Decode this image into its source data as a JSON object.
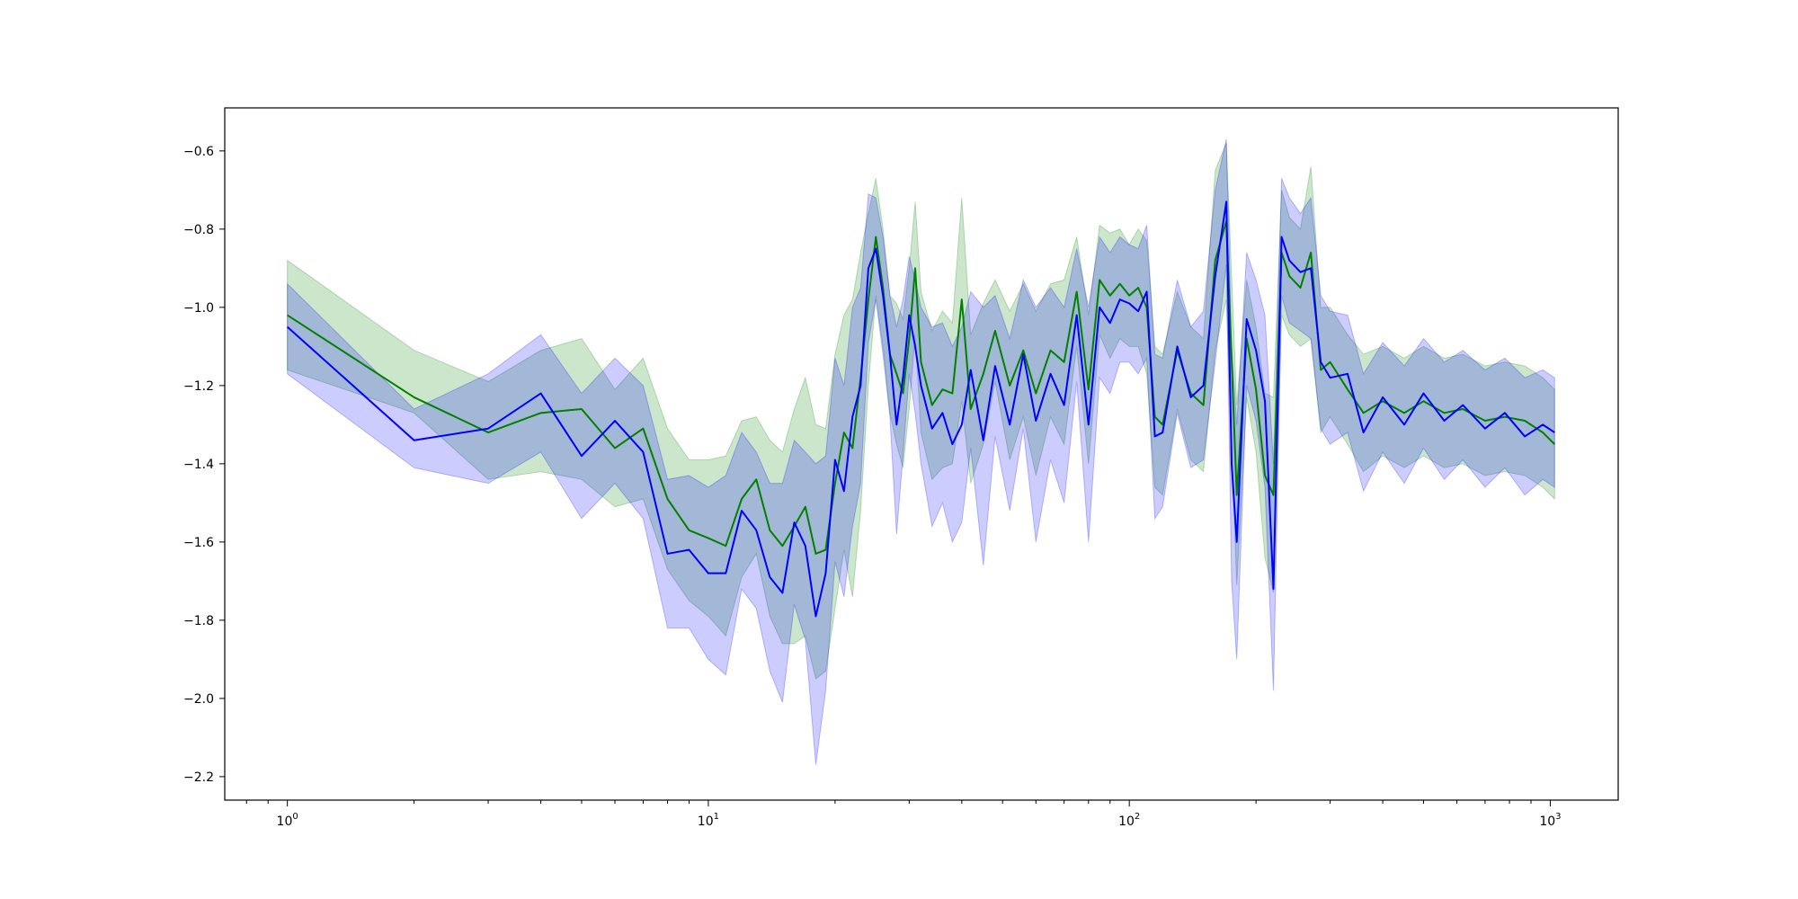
{
  "chart_data": {
    "type": "line",
    "title": "",
    "xlabel": "",
    "ylabel": "",
    "x_scale": "log",
    "xlim": [
      0.71,
      1450
    ],
    "ylim": [
      -2.26,
      -0.49
    ],
    "grid": false,
    "legend": null,
    "x_ticks": [
      {
        "value": 1,
        "base": "10",
        "exp": "0"
      },
      {
        "value": 10,
        "base": "10",
        "exp": "1"
      },
      {
        "value": 100,
        "base": "10",
        "exp": "2"
      },
      {
        "value": 1000,
        "base": "10",
        "exp": "3"
      }
    ],
    "y_ticks": [
      {
        "value": -0.6,
        "label": "−0.6"
      },
      {
        "value": -0.8,
        "label": "−0.8"
      },
      {
        "value": -1.0,
        "label": "−1.0"
      },
      {
        "value": -1.2,
        "label": "−1.2"
      },
      {
        "value": -1.4,
        "label": "−1.4"
      },
      {
        "value": -1.6,
        "label": "−1.6"
      },
      {
        "value": -1.8,
        "label": "−1.8"
      },
      {
        "value": -2.0,
        "label": "−2.0"
      },
      {
        "value": -2.2,
        "label": "−2.2"
      }
    ],
    "series": [
      {
        "color": "#008000",
        "band_color": "#008000",
        "band_opacity": 0.2,
        "points": [
          [
            1,
            -1.02,
            -0.88,
            -1.16
          ],
          [
            2,
            -1.23,
            -1.11,
            -1.27
          ],
          [
            3,
            -1.32,
            -1.19,
            -1.44
          ],
          [
            4,
            -1.27,
            -1.11,
            -1.42
          ],
          [
            5,
            -1.26,
            -1.08,
            -1.44
          ],
          [
            6,
            -1.36,
            -1.21,
            -1.51
          ],
          [
            7,
            -1.31,
            -1.13,
            -1.49
          ],
          [
            8,
            -1.49,
            -1.31,
            -1.67
          ],
          [
            9,
            -1.57,
            -1.39,
            -1.75
          ],
          [
            10,
            -1.59,
            -1.39,
            -1.79
          ],
          [
            11,
            -1.61,
            -1.38,
            -1.84
          ],
          [
            12,
            -1.49,
            -1.29,
            -1.69
          ],
          [
            13,
            -1.44,
            -1.28,
            -1.63
          ],
          [
            14,
            -1.57,
            -1.34,
            -1.79
          ],
          [
            15,
            -1.61,
            -1.37,
            -1.86
          ],
          [
            16,
            -1.56,
            -1.26,
            -1.86
          ],
          [
            17,
            -1.51,
            -1.18,
            -1.84
          ],
          [
            18,
            -1.63,
            -1.3,
            -1.95
          ],
          [
            19,
            -1.62,
            -1.31,
            -1.93
          ],
          [
            20,
            -1.45,
            -1.12,
            -1.77
          ],
          [
            21,
            -1.32,
            -1.02,
            -1.62
          ],
          [
            22,
            -1.36,
            -0.98,
            -1.74
          ],
          [
            23,
            -1.18,
            -0.86,
            -1.52
          ],
          [
            24,
            -0.98,
            -0.76,
            -1.2
          ],
          [
            25,
            -0.82,
            -0.67,
            -0.97
          ],
          [
            26,
            -0.95,
            -0.8,
            -1.1
          ],
          [
            27,
            -1.12,
            -0.97,
            -1.27
          ],
          [
            28,
            -1.17,
            -0.99,
            -1.35
          ],
          [
            29,
            -1.22,
            -1.03,
            -1.41
          ],
          [
            30,
            -1.08,
            -0.9,
            -1.26
          ],
          [
            31,
            -0.9,
            -0.73,
            -1.07
          ],
          [
            32,
            -1.14,
            -0.96,
            -1.32
          ],
          [
            34,
            -1.25,
            -1.06,
            -1.44
          ],
          [
            36,
            -1.21,
            -1.01,
            -1.41
          ],
          [
            38,
            -1.22,
            -1.04,
            -1.4
          ],
          [
            40,
            -0.98,
            -0.72,
            -1.24
          ],
          [
            42,
            -1.26,
            -1.07,
            -1.45
          ],
          [
            45,
            -1.17,
            -0.99,
            -1.35
          ],
          [
            48,
            -1.06,
            -0.93,
            -1.19
          ],
          [
            52,
            -1.2,
            -1.01,
            -1.39
          ],
          [
            56,
            -1.11,
            -0.94,
            -1.28
          ],
          [
            60,
            -1.22,
            -1.01,
            -1.43
          ],
          [
            65,
            -1.11,
            -0.94,
            -1.28
          ],
          [
            70,
            -1.14,
            -0.93,
            -1.35
          ],
          [
            75,
            -0.96,
            -0.82,
            -1.1
          ],
          [
            80,
            -1.21,
            -1.02,
            -1.4
          ],
          [
            85,
            -0.93,
            -0.79,
            -1.07
          ],
          [
            90,
            -0.97,
            -0.81,
            -1.13
          ],
          [
            95,
            -0.94,
            -0.8,
            -1.08
          ],
          [
            100,
            -0.97,
            -0.84,
            -1.1
          ],
          [
            105,
            -0.95,
            -0.8,
            -1.1
          ],
          [
            110,
            -1.0,
            -0.83,
            -1.17
          ],
          [
            115,
            -1.28,
            -1.1,
            -1.46
          ],
          [
            120,
            -1.3,
            -1.12,
            -1.48
          ],
          [
            130,
            -1.11,
            -0.96,
            -1.26
          ],
          [
            140,
            -1.22,
            -1.05,
            -1.39
          ],
          [
            150,
            -1.25,
            -1.08,
            -1.42
          ],
          [
            160,
            -0.88,
            -0.65,
            -1.11
          ],
          [
            170,
            -0.78,
            -0.58,
            -0.98
          ],
          [
            180,
            -1.48,
            -1.25,
            -1.71
          ],
          [
            190,
            -1.08,
            -0.93,
            -1.23
          ],
          [
            200,
            -1.21,
            -1.05,
            -1.37
          ],
          [
            210,
            -1.43,
            -1.22,
            -1.64
          ],
          [
            220,
            -1.48,
            -1.23,
            -1.73
          ],
          [
            230,
            -0.86,
            -0.7,
            -1.02
          ],
          [
            240,
            -0.92,
            -0.77,
            -1.07
          ],
          [
            255,
            -0.95,
            -0.8,
            -1.1
          ],
          [
            270,
            -0.86,
            -0.64,
            -1.08
          ],
          [
            285,
            -1.16,
            -1.0,
            -1.32
          ],
          [
            300,
            -1.14,
            -1.0,
            -1.28
          ],
          [
            330,
            -1.21,
            -1.07,
            -1.35
          ],
          [
            360,
            -1.27,
            -1.12,
            -1.42
          ],
          [
            400,
            -1.24,
            -1.1,
            -1.38
          ],
          [
            450,
            -1.27,
            -1.13,
            -1.41
          ],
          [
            500,
            -1.24,
            -1.1,
            -1.38
          ],
          [
            560,
            -1.27,
            -1.13,
            -1.41
          ],
          [
            620,
            -1.26,
            -1.12,
            -1.4
          ],
          [
            700,
            -1.29,
            -1.15,
            -1.43
          ],
          [
            780,
            -1.28,
            -1.14,
            -1.42
          ],
          [
            870,
            -1.29,
            -1.15,
            -1.43
          ],
          [
            960,
            -1.32,
            -1.18,
            -1.46
          ],
          [
            1024,
            -1.35,
            -1.21,
            -1.49
          ]
        ]
      },
      {
        "color": "#0000ff",
        "band_color": "#0000ff",
        "band_opacity": 0.2,
        "points": [
          [
            1,
            -1.05,
            -0.94,
            -1.17
          ],
          [
            2,
            -1.34,
            -1.26,
            -1.41
          ],
          [
            3,
            -1.31,
            -1.17,
            -1.45
          ],
          [
            4,
            -1.22,
            -1.07,
            -1.37
          ],
          [
            5,
            -1.38,
            -1.22,
            -1.54
          ],
          [
            6,
            -1.29,
            -1.13,
            -1.45
          ],
          [
            7,
            -1.37,
            -1.2,
            -1.54
          ],
          [
            8,
            -1.63,
            -1.44,
            -1.82
          ],
          [
            9,
            -1.62,
            -1.43,
            -1.82
          ],
          [
            10,
            -1.68,
            -1.46,
            -1.9
          ],
          [
            11,
            -1.68,
            -1.43,
            -1.94
          ],
          [
            12,
            -1.52,
            -1.32,
            -1.72
          ],
          [
            13,
            -1.57,
            -1.37,
            -1.77
          ],
          [
            14,
            -1.69,
            -1.45,
            -1.93
          ],
          [
            15,
            -1.73,
            -1.45,
            -2.01
          ],
          [
            16,
            -1.55,
            -1.34,
            -1.76
          ],
          [
            17,
            -1.61,
            -1.37,
            -1.85
          ],
          [
            18,
            -1.79,
            -1.4,
            -2.17
          ],
          [
            19,
            -1.68,
            -1.38,
            -1.98
          ],
          [
            20,
            -1.39,
            -1.13,
            -1.65
          ],
          [
            21,
            -1.47,
            -1.2,
            -1.74
          ],
          [
            22,
            -1.28,
            -1.0,
            -1.56
          ],
          [
            23,
            -1.2,
            -0.95,
            -1.45
          ],
          [
            24,
            -0.9,
            -0.71,
            -1.09
          ],
          [
            25,
            -0.85,
            -0.72,
            -0.98
          ],
          [
            26,
            -0.97,
            -0.82,
            -1.12
          ],
          [
            27,
            -1.12,
            -0.97,
            -1.28
          ],
          [
            28,
            -1.3,
            -1.05,
            -1.58
          ],
          [
            29,
            -1.18,
            -0.98,
            -1.38
          ],
          [
            30,
            -1.02,
            -0.87,
            -1.17
          ],
          [
            31,
            -1.1,
            -0.93,
            -1.27
          ],
          [
            32,
            -1.2,
            -1.0,
            -1.4
          ],
          [
            34,
            -1.31,
            -1.05,
            -1.56
          ],
          [
            36,
            -1.27,
            -1.04,
            -1.5
          ],
          [
            38,
            -1.35,
            -1.1,
            -1.6
          ],
          [
            40,
            -1.3,
            -1.05,
            -1.55
          ],
          [
            42,
            -1.16,
            -0.96,
            -1.36
          ],
          [
            45,
            -1.34,
            -1.0,
            -1.66
          ],
          [
            48,
            -1.15,
            -0.97,
            -1.33
          ],
          [
            52,
            -1.3,
            -1.08,
            -1.52
          ],
          [
            56,
            -1.12,
            -0.93,
            -1.31
          ],
          [
            60,
            -1.29,
            -1.0,
            -1.6
          ],
          [
            65,
            -1.17,
            -0.95,
            -1.39
          ],
          [
            70,
            -1.25,
            -1.0,
            -1.5
          ],
          [
            75,
            -1.02,
            -0.85,
            -1.19
          ],
          [
            80,
            -1.3,
            -1.0,
            -1.6
          ],
          [
            85,
            -1.0,
            -0.82,
            -1.18
          ],
          [
            90,
            -1.04,
            -0.86,
            -1.22
          ],
          [
            95,
            -0.98,
            -0.82,
            -1.14
          ],
          [
            100,
            -0.99,
            -0.84,
            -1.14
          ],
          [
            105,
            -1.01,
            -0.85,
            -1.17
          ],
          [
            110,
            -0.96,
            -0.79,
            -1.13
          ],
          [
            115,
            -1.33,
            -1.12,
            -1.54
          ],
          [
            120,
            -1.32,
            -1.13,
            -1.51
          ],
          [
            130,
            -1.1,
            -0.93,
            -1.27
          ],
          [
            140,
            -1.23,
            -1.05,
            -1.41
          ],
          [
            150,
            -1.2,
            -1.01,
            -1.39
          ],
          [
            160,
            -0.92,
            -0.7,
            -1.14
          ],
          [
            170,
            -0.73,
            -0.57,
            -0.89
          ],
          [
            175,
            -1.4,
            -1.1,
            -1.7
          ],
          [
            180,
            -1.6,
            -1.3,
            -1.9
          ],
          [
            190,
            -1.03,
            -0.86,
            -1.2
          ],
          [
            200,
            -1.11,
            -0.93,
            -1.29
          ],
          [
            210,
            -1.24,
            -1.02,
            -1.46
          ],
          [
            220,
            -1.72,
            -1.4,
            -1.98
          ],
          [
            230,
            -0.82,
            -0.67,
            -0.97
          ],
          [
            240,
            -0.88,
            -0.72,
            -1.04
          ],
          [
            255,
            -0.91,
            -0.76,
            -1.06
          ],
          [
            270,
            -0.9,
            -0.72,
            -1.08
          ],
          [
            285,
            -1.14,
            -0.97,
            -1.31
          ],
          [
            300,
            -1.18,
            -1.01,
            -1.35
          ],
          [
            330,
            -1.17,
            -1.02,
            -1.32
          ],
          [
            360,
            -1.32,
            -1.17,
            -1.47
          ],
          [
            400,
            -1.23,
            -1.09,
            -1.37
          ],
          [
            450,
            -1.3,
            -1.15,
            -1.45
          ],
          [
            500,
            -1.22,
            -1.08,
            -1.36
          ],
          [
            560,
            -1.29,
            -1.14,
            -1.44
          ],
          [
            620,
            -1.25,
            -1.11,
            -1.39
          ],
          [
            700,
            -1.31,
            -1.16,
            -1.46
          ],
          [
            780,
            -1.27,
            -1.13,
            -1.41
          ],
          [
            870,
            -1.33,
            -1.18,
            -1.48
          ],
          [
            960,
            -1.3,
            -1.16,
            -1.44
          ],
          [
            1024,
            -1.32,
            -1.18,
            -1.46
          ]
        ]
      }
    ]
  }
}
